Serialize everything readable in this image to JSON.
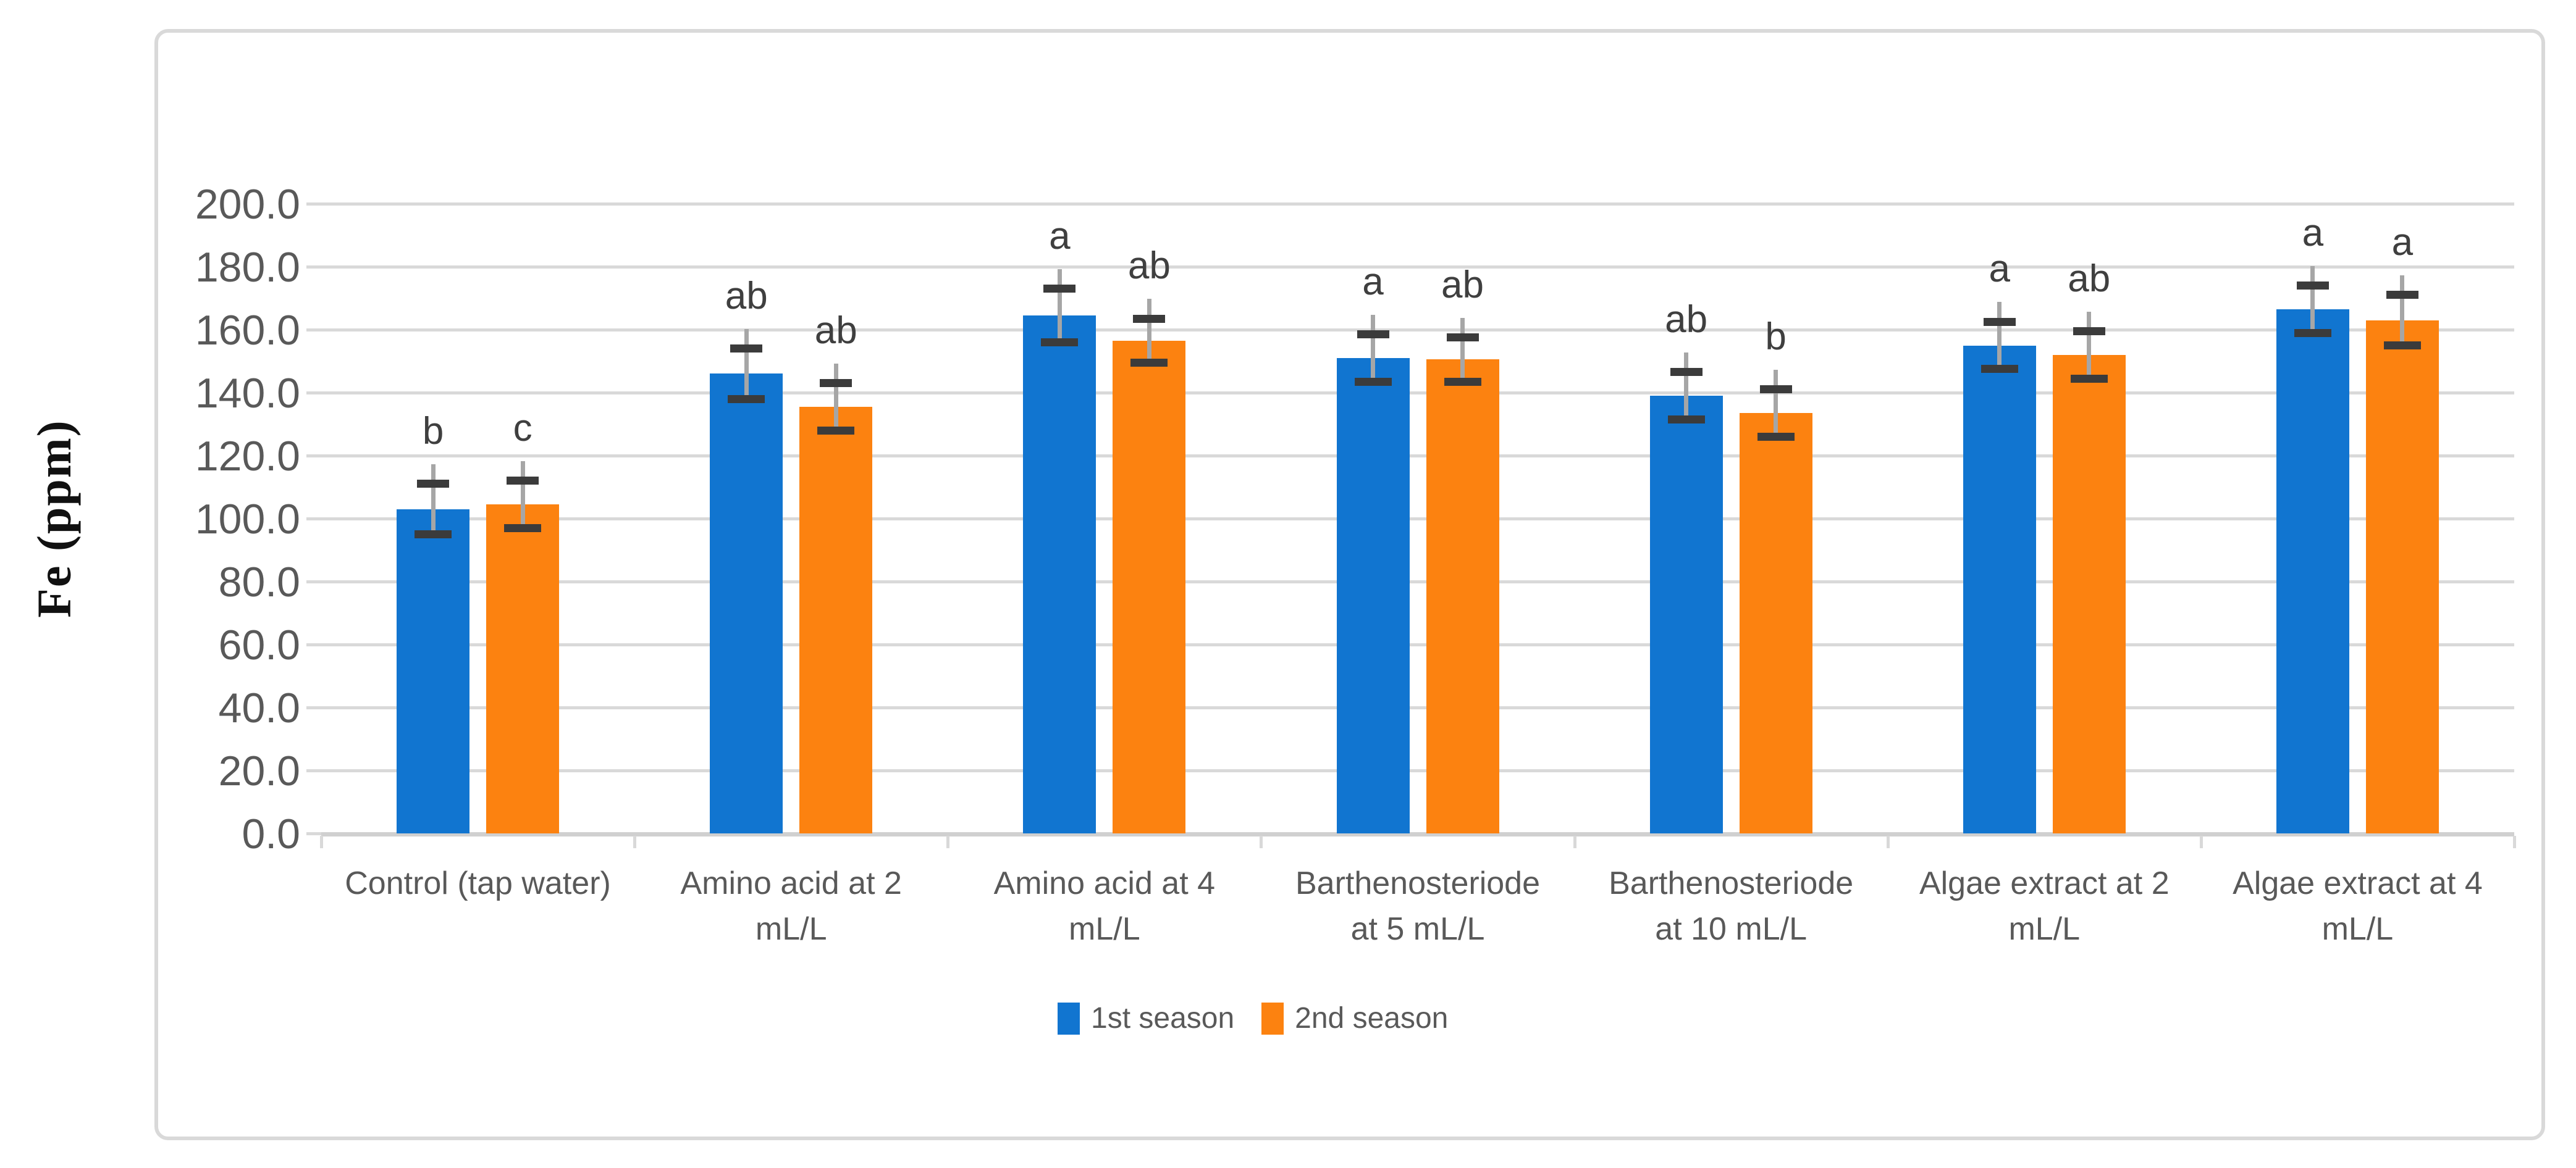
{
  "chart_data": {
    "type": "bar",
    "title": "",
    "xlabel": "",
    "ylabel": "Fe (ppm)",
    "ylim": [
      0,
      200
    ],
    "ytick_step": 20,
    "ytick_decimals": 1,
    "grid": true,
    "legend_position": "bottom-center",
    "categories": [
      {
        "lines": [
          "Control (tap water)"
        ]
      },
      {
        "lines": [
          "Amino acid at 2",
          "mL/L"
        ]
      },
      {
        "lines": [
          "Amino acid at 4",
          "mL/L"
        ]
      },
      {
        "lines": [
          "Barthenosteriode",
          "at  5 mL/L"
        ]
      },
      {
        "lines": [
          "Barthenosteriode",
          "at  10 mL/L"
        ]
      },
      {
        "lines": [
          "Algae extract at 2",
          "mL/L"
        ]
      },
      {
        "lines": [
          "Algae  extract at 4",
          "mL/L"
        ]
      }
    ],
    "series": [
      {
        "name": "1st season",
        "color": "#1175D0",
        "values": [
          103.0,
          146.0,
          164.5,
          151.0,
          139.0,
          155.0,
          166.5
        ],
        "errors": [
          8.0,
          8.0,
          8.5,
          7.5,
          7.5,
          7.5,
          7.5
        ],
        "letters": [
          "b",
          "ab",
          "a",
          "a",
          "ab",
          "a",
          "a"
        ]
      },
      {
        "name": "2nd season",
        "color": "#FC8210",
        "values": [
          104.5,
          135.5,
          156.5,
          150.5,
          133.5,
          152.0,
          163.0
        ],
        "errors": [
          7.5,
          7.5,
          7.0,
          7.0,
          7.5,
          7.5,
          8.0
        ],
        "letters": [
          "c",
          "ab",
          "ab",
          "ab",
          "b",
          "ab",
          "a"
        ]
      }
    ]
  },
  "colors": {
    "gridline": "#D9D9D9",
    "axis_line": "#D0D0D0",
    "error_whisker": "#A6A6A6",
    "error_cap": "#3B3B3B",
    "tick_label": "#595959",
    "letter": "#3F3F3F",
    "frame_border": "#D9D9D9",
    "background": "#FFFFFF"
  }
}
